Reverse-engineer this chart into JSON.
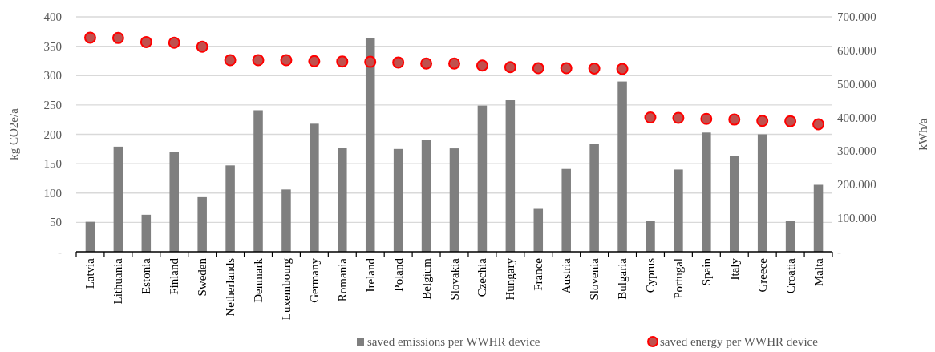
{
  "chart_data": {
    "type": "bar",
    "ylabel": "kg CO2e/a",
    "y2label": "kWh/a",
    "categories": [
      "Latvia",
      "Lithuania",
      "Estonia",
      "Finland",
      "Sweden",
      "Netherlands",
      "Denmark",
      "Luxembourg",
      "Germany",
      "Romania",
      "Ireland",
      "Poland",
      "Belgium",
      "Slovakia",
      "Czechia",
      "Hungary",
      "France",
      "Austria",
      "Slovenia",
      "Bulgaria",
      "Cyprus",
      "Portugal",
      "Spain",
      "Italy",
      "Greece",
      "Croatia",
      "Malta"
    ],
    "series": [
      {
        "name": "saved emissions per WWHR device",
        "color": "#7f7f7f",
        "values": [
          51,
          179,
          63,
          170,
          93,
          147,
          241,
          106,
          218,
          177,
          364,
          175,
          191,
          176,
          249,
          258,
          73,
          141,
          184,
          290,
          53,
          140,
          203,
          163,
          200,
          53,
          114
        ]
      },
      {
        "name": "saved energy per WWHR device",
        "type": "scatter",
        "axis": "y2",
        "color": "#c0504d",
        "x": [
          "Latvia",
          "Lithuania",
          "Estonia",
          "Finland",
          "Sweden",
          "Netherlands",
          "Denmark",
          "Luxembourg",
          "Germany",
          "Romania",
          "Ireland",
          "Poland",
          "Belgium",
          "Slovakia",
          "Czechia",
          "Hungary",
          "France",
          "Austria",
          "Slovenia",
          "Bulgaria",
          "Cyprus",
          "Portugal",
          "Spain",
          "Italy",
          "Greece",
          "Croatia",
          "Malta"
        ],
        "values": [
          638000,
          637000,
          625000,
          623000,
          611000,
          571000,
          571000,
          571000,
          568000,
          567000,
          566000,
          564000,
          561000,
          561000,
          555000,
          550000,
          547000,
          547000,
          546000,
          545000,
          400000,
          399000,
          396000,
          394000,
          390000,
          389000,
          380000
        ]
      }
    ],
    "ylim": [
      0,
      400
    ],
    "yticks": [
      {
        "value": 0,
        "label": "-"
      },
      50,
      100,
      150,
      200,
      250,
      300,
      350,
      400
    ],
    "y2lim": [
      0,
      700000
    ],
    "y2ticks": [
      {
        "value": 0,
        "label": "-"
      },
      {
        "value": 100000,
        "label": "100.000"
      },
      {
        "value": 200000,
        "label": "200.000"
      },
      {
        "value": 300000,
        "label": "300.000"
      },
      {
        "value": 400000,
        "label": "400.000"
      },
      {
        "value": 500000,
        "label": "500.000"
      },
      {
        "value": 600000,
        "label": "600.000"
      },
      {
        "value": 700000,
        "label": "700.000"
      }
    ],
    "grid": "y",
    "legend": "bottom",
    "marker": "circle"
  }
}
